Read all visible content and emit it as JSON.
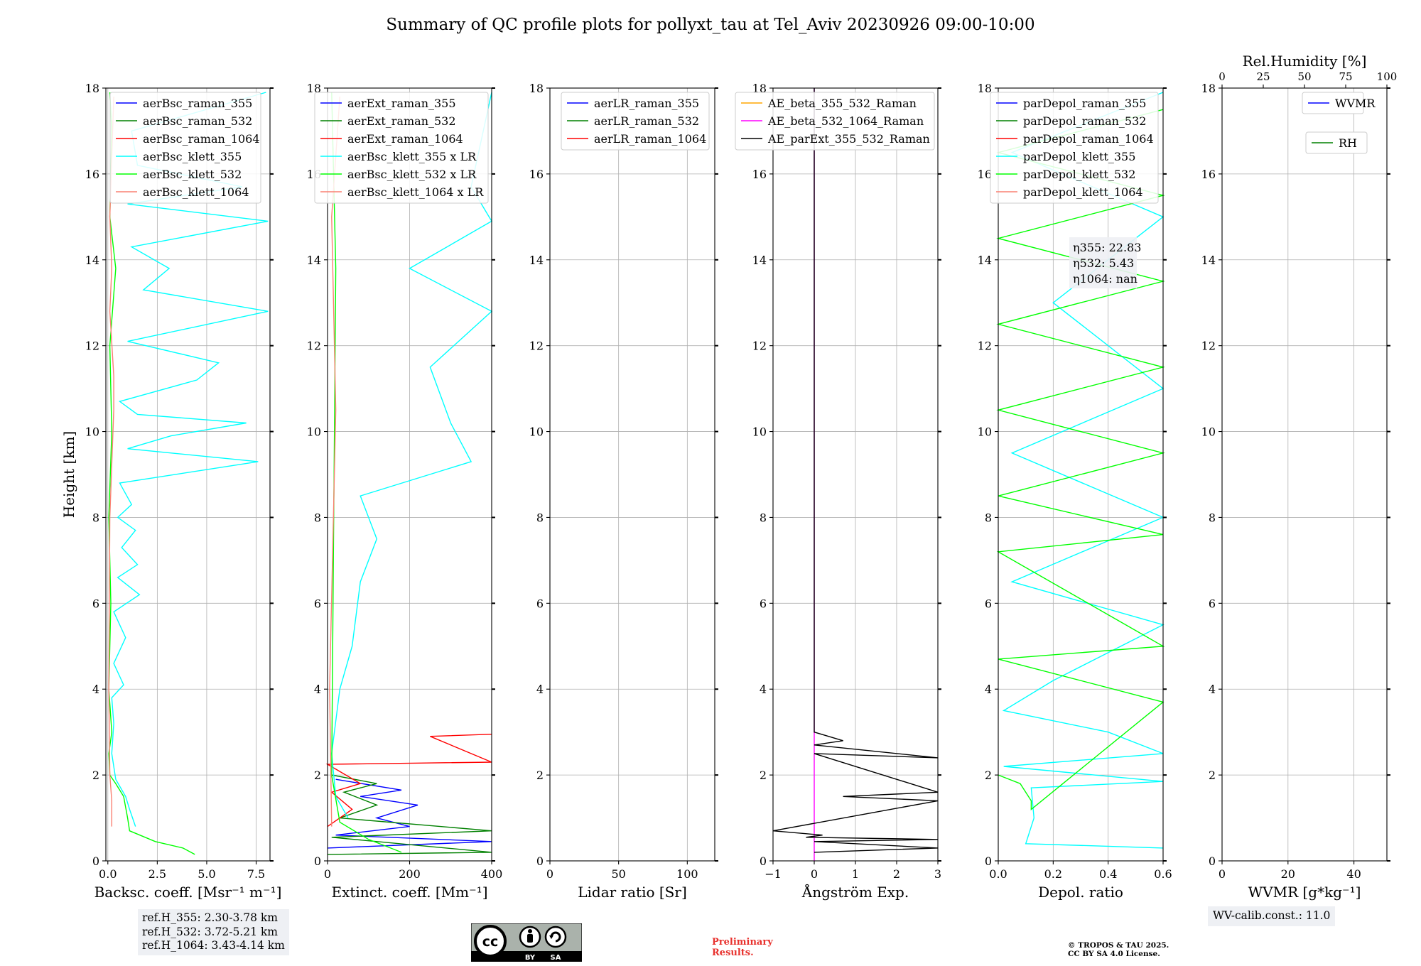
{
  "figure": {
    "title": "Summary of QC profile plots for pollyxt_tau at Tel_Aviv 20230926 09:00-10:00",
    "ref_heights": [
      "ref.H_355: 2.30-3.78 km",
      "ref.H_532: 3.72-5.21 km",
      "ref.H_1064: 3.43-4.14 km"
    ],
    "wv_calib": "WV-calib.const.: 11.0",
    "cc_badge": {
      "by": "BY",
      "sa": "SA"
    },
    "preliminary": [
      "Preliminary",
      "Results."
    ],
    "copyright": [
      "© TROPOS & TAU 2025.",
      "CC BY SA 4.0 License."
    ]
  },
  "chart_data": [
    {
      "type": "line",
      "ylabel": "Height [km]",
      "xlabel": "Backsc. coeff. [Msr⁻¹ m⁻¹]",
      "xlim": [
        -0.1,
        8.2
      ],
      "ylim": [
        0,
        18
      ],
      "xticks": [
        0,
        2.5,
        5,
        7.5
      ],
      "xticklabels": [
        "0.0",
        "2.5",
        "5.0",
        "7.5"
      ],
      "yticks": [
        0,
        2,
        4,
        6,
        8,
        10,
        12,
        14,
        16,
        18
      ],
      "legend": "top",
      "series": [
        {
          "name": "aerBsc_raman_355",
          "color": "#0000ff",
          "points": []
        },
        {
          "name": "aerBsc_raman_532",
          "color": "#008000",
          "points": []
        },
        {
          "name": "aerBsc_raman_1064",
          "color": "#ff0000",
          "points": []
        },
        {
          "name": "aerBsc_klett_355",
          "color": "#00ffff",
          "points": [
            [
              1.4,
              0.8
            ],
            [
              1.1,
              1.2
            ],
            [
              0.9,
              1.5
            ],
            [
              0.4,
              1.9
            ],
            [
              0.2,
              2.5
            ],
            [
              0.3,
              3.2
            ],
            [
              0.2,
              3.8
            ],
            [
              0.8,
              4.1
            ],
            [
              0.3,
              4.6
            ],
            [
              0.9,
              5.2
            ],
            [
              0.3,
              5.8
            ],
            [
              1.6,
              6.2
            ],
            [
              0.5,
              6.6
            ],
            [
              1.5,
              6.9
            ],
            [
              0.7,
              7.3
            ],
            [
              1.4,
              7.7
            ],
            [
              0.5,
              8.0
            ],
            [
              1.2,
              8.3
            ],
            [
              0.6,
              8.8
            ],
            [
              7.6,
              9.3
            ],
            [
              1.0,
              9.6
            ],
            [
              3.2,
              9.9
            ],
            [
              7.0,
              10.2
            ],
            [
              1.5,
              10.4
            ],
            [
              0.6,
              10.7
            ],
            [
              4.5,
              11.2
            ],
            [
              5.6,
              11.6
            ],
            [
              1.0,
              12.1
            ],
            [
              8.1,
              12.8
            ],
            [
              1.8,
              13.3
            ],
            [
              3.1,
              13.8
            ],
            [
              1.2,
              14.3
            ],
            [
              8.1,
              14.9
            ],
            [
              1.0,
              15.3
            ],
            [
              6.8,
              15.7
            ],
            [
              1.5,
              16.2
            ],
            [
              1.2,
              17.0
            ],
            [
              8.0,
              17.9
            ]
          ]
        },
        {
          "name": "aerBsc_klett_532",
          "color": "#00ff00",
          "points": [
            [
              4.4,
              0.15
            ],
            [
              3.8,
              0.3
            ],
            [
              2.4,
              0.45
            ],
            [
              1.1,
              0.7
            ],
            [
              1.0,
              1.0
            ],
            [
              0.8,
              1.5
            ],
            [
              0.4,
              1.8
            ],
            [
              0.1,
              2.0
            ],
            [
              0.05,
              2.5
            ],
            [
              0.2,
              3.0
            ],
            [
              0.05,
              4.0
            ],
            [
              0.15,
              6.0
            ],
            [
              0.05,
              8.0
            ],
            [
              0.2,
              10.0
            ],
            [
              0.1,
              12.0
            ],
            [
              0.4,
              13.8
            ],
            [
              0.1,
              15.0
            ],
            [
              0.2,
              17.0
            ],
            [
              0.1,
              17.9
            ]
          ]
        },
        {
          "name": "aerBsc_klett_1064",
          "color": "#fa8072",
          "points": [
            [
              0.2,
              0.8
            ],
            [
              0.2,
              1.4
            ],
            [
              0.1,
              2.0
            ],
            [
              0.05,
              4.0
            ],
            [
              0.1,
              8.0
            ],
            [
              0.3,
              10.5
            ],
            [
              0.3,
              11.3
            ],
            [
              0.1,
              12.8
            ],
            [
              0.2,
              13.8
            ],
            [
              0.1,
              15.0
            ],
            [
              0.3,
              17.8
            ]
          ]
        }
      ]
    },
    {
      "type": "line",
      "xlabel": "Extinct. coeff. [Mm⁻¹]",
      "xlim": [
        0,
        400
      ],
      "ylim": [
        0,
        18
      ],
      "xticks": [
        0,
        200,
        400
      ],
      "xticklabels": [
        "0",
        "200",
        "400"
      ],
      "yticks": [
        0,
        2,
        4,
        6,
        8,
        10,
        12,
        14,
        16,
        18
      ],
      "legend": "top",
      "series": [
        {
          "name": "aerExt_raman_355",
          "color": "#0000ff",
          "points": [
            [
              0,
              0.3
            ],
            [
              400,
              0.45
            ],
            [
              20,
              0.6
            ],
            [
              200,
              0.8
            ],
            [
              120,
              1.0
            ],
            [
              220,
              1.3
            ],
            [
              80,
              1.5
            ],
            [
              180,
              1.65
            ],
            [
              20,
              1.9
            ]
          ]
        },
        {
          "name": "aerExt_raman_532",
          "color": "#008000",
          "points": [
            [
              0,
              0.15
            ],
            [
              400,
              0.2
            ],
            [
              10,
              0.55
            ],
            [
              400,
              0.7
            ],
            [
              30,
              1.0
            ],
            [
              120,
              1.3
            ],
            [
              40,
              1.6
            ],
            [
              120,
              1.8
            ],
            [
              10,
              2.0
            ]
          ]
        },
        {
          "name": "aerExt_raman_1064",
          "color": "#ff0000",
          "points": [
            [
              0,
              0.8
            ],
            [
              60,
              1.2
            ],
            [
              10,
              1.6
            ],
            [
              80,
              1.8
            ],
            [
              0,
              2.25
            ],
            [
              400,
              2.3
            ],
            [
              250,
              2.9
            ],
            [
              400,
              2.95
            ]
          ]
        },
        {
          "name": "aerBsc_klett_355 x LR",
          "color": "#00ffff",
          "points": [
            [
              50,
              1.0
            ],
            [
              20,
              1.5
            ],
            [
              10,
              2.5
            ],
            [
              30,
              4.0
            ],
            [
              60,
              5.0
            ],
            [
              80,
              6.5
            ],
            [
              120,
              7.5
            ],
            [
              80,
              8.5
            ],
            [
              350,
              9.3
            ],
            [
              300,
              10.2
            ],
            [
              250,
              11.5
            ],
            [
              400,
              12.8
            ],
            [
              200,
              13.8
            ],
            [
              400,
              14.9
            ],
            [
              350,
              15.7
            ],
            [
              400,
              17.9
            ]
          ]
        },
        {
          "name": "aerBsc_klett_532 x LR",
          "color": "#00ff00",
          "points": [
            [
              180,
              0.2
            ],
            [
              100,
              0.5
            ],
            [
              30,
              0.9
            ],
            [
              10,
              2.0
            ],
            [
              15,
              8.0
            ],
            [
              20,
              13.8
            ],
            [
              10,
              17.9
            ]
          ]
        },
        {
          "name": "aerBsc_klett_1064 x LR",
          "color": "#fa8072",
          "points": [
            [
              10,
              0.8
            ],
            [
              5,
              4.0
            ],
            [
              20,
              10.5
            ],
            [
              10,
              15.0
            ],
            [
              30,
              17.8
            ]
          ]
        }
      ]
    },
    {
      "type": "line",
      "xlabel": "Lidar ratio [Sr]",
      "xlim": [
        0,
        120
      ],
      "ylim": [
        0,
        18
      ],
      "xticks": [
        0,
        50,
        100
      ],
      "xticklabels": [
        "0",
        "50",
        "100"
      ],
      "yticks": [
        0,
        2,
        4,
        6,
        8,
        10,
        12,
        14,
        16,
        18
      ],
      "legend": "top-left",
      "series": [
        {
          "name": "aerLR_raman_355",
          "color": "#0000ff",
          "points": []
        },
        {
          "name": "aerLR_raman_532",
          "color": "#008000",
          "points": []
        },
        {
          "name": "aerLR_raman_1064",
          "color": "#ff0000",
          "points": []
        }
      ]
    },
    {
      "type": "line",
      "xlabel": "Ångström Exp.",
      "xlim": [
        -1,
        3
      ],
      "ylim": [
        0,
        18
      ],
      "xticks": [
        -1,
        0,
        1,
        2,
        3
      ],
      "xticklabels": [
        "−1",
        "0",
        "1",
        "2",
        "3"
      ],
      "yticks": [
        0,
        2,
        4,
        6,
        8,
        10,
        12,
        14,
        16,
        18
      ],
      "legend": "top-left",
      "series": [
        {
          "name": "AE_beta_355_532_Raman",
          "color": "#ffa500",
          "points": []
        },
        {
          "name": "AE_beta_532_1064_Raman",
          "color": "#ff00ff",
          "points": [
            [
              0,
              0
            ],
            [
              0,
              18
            ]
          ]
        },
        {
          "name": "AE_parExt_355_532_Raman",
          "color": "#000000",
          "points": [
            [
              0,
              0.2
            ],
            [
              3,
              0.3
            ],
            [
              0,
              0.45
            ],
            [
              3,
              0.5
            ],
            [
              -0.2,
              0.55
            ],
            [
              0.2,
              0.6
            ],
            [
              -1,
              0.7
            ],
            [
              3,
              1.4
            ],
            [
              0.7,
              1.5
            ],
            [
              3,
              1.6
            ],
            [
              0,
              2.5
            ],
            [
              3,
              2.4
            ],
            [
              0,
              2.7
            ],
            [
              0.7,
              2.8
            ],
            [
              0,
              3.0
            ],
            [
              0,
              18
            ]
          ]
        }
      ]
    },
    {
      "type": "line",
      "xlabel": "Depol. ratio",
      "xlim": [
        0,
        0.6
      ],
      "ylim": [
        0,
        18
      ],
      "xticks": [
        0,
        0.2,
        0.4,
        0.6
      ],
      "xticklabels": [
        "0.0",
        "0.2",
        "0.4",
        "0.6"
      ],
      "yticks": [
        0,
        2,
        4,
        6,
        8,
        10,
        12,
        14,
        16,
        18
      ],
      "legend": "top",
      "annotations": [
        "η355: 22.83",
        "η532: 5.43",
        "η1064: nan"
      ],
      "series": [
        {
          "name": "parDepol_raman_355",
          "color": "#0000ff",
          "points": []
        },
        {
          "name": "parDepol_raman_532",
          "color": "#008000",
          "points": []
        },
        {
          "name": "parDepol_raman_1064",
          "color": "#ff0000",
          "points": []
        },
        {
          "name": "parDepol_klett_355",
          "color": "#00ffff",
          "points": [
            [
              0.6,
              0.3
            ],
            [
              0.1,
              0.4
            ],
            [
              0.13,
              1.0
            ],
            [
              0.12,
              1.7
            ],
            [
              0.6,
              1.85
            ],
            [
              0.02,
              2.2
            ],
            [
              0.6,
              2.5
            ],
            [
              0.4,
              3.0
            ],
            [
              0.02,
              3.5
            ],
            [
              0.2,
              4.2
            ],
            [
              0.6,
              5.5
            ],
            [
              0.05,
              6.5
            ],
            [
              0.6,
              8.0
            ],
            [
              0.05,
              9.5
            ],
            [
              0.6,
              11.0
            ],
            [
              0.2,
              13.0
            ],
            [
              0.6,
              15.0
            ],
            [
              0.05,
              16.5
            ],
            [
              0.6,
              17.9
            ]
          ]
        },
        {
          "name": "parDepol_klett_532",
          "color": "#00ff00",
          "points": [
            [
              0.0,
              2.0
            ],
            [
              0.08,
              1.8
            ],
            [
              0.12,
              1.4
            ],
            [
              0.12,
              1.2
            ],
            [
              0.6,
              3.7
            ],
            [
              0.0,
              4.7
            ],
            [
              0.6,
              5.0
            ],
            [
              0.0,
              7.2
            ],
            [
              0.6,
              7.6
            ],
            [
              0.0,
              8.5
            ],
            [
              0.6,
              9.5
            ],
            [
              0.0,
              10.5
            ],
            [
              0.6,
              11.5
            ],
            [
              0.0,
              12.5
            ],
            [
              0.6,
              13.5
            ],
            [
              0.0,
              14.5
            ],
            [
              0.6,
              15.5
            ],
            [
              0.0,
              16.5
            ],
            [
              0.6,
              17.5
            ]
          ]
        },
        {
          "name": "parDepol_klett_1064",
          "color": "#fa8072",
          "points": []
        }
      ]
    },
    {
      "type": "line",
      "xlabel": "WVMR [g*kg⁻¹]",
      "x2label": "Rel.Humidity [%]",
      "xlim": [
        0,
        50
      ],
      "x2lim": [
        0,
        100
      ],
      "ylim": [
        0,
        18
      ],
      "xticks": [
        0,
        20,
        40
      ],
      "xticklabels": [
        "0",
        "20",
        "40"
      ],
      "x2ticks": [
        0,
        25,
        50,
        75,
        100
      ],
      "x2ticklabels": [
        "0",
        "25",
        "50",
        "75",
        "100"
      ],
      "yticks": [
        0,
        2,
        4,
        6,
        8,
        10,
        12,
        14,
        16,
        18
      ],
      "legend": "top-right",
      "series": [
        {
          "name": "WVMR",
          "color": "#0000ff",
          "points": []
        },
        {
          "name": "RH",
          "color": "#008000",
          "points": []
        }
      ]
    }
  ]
}
